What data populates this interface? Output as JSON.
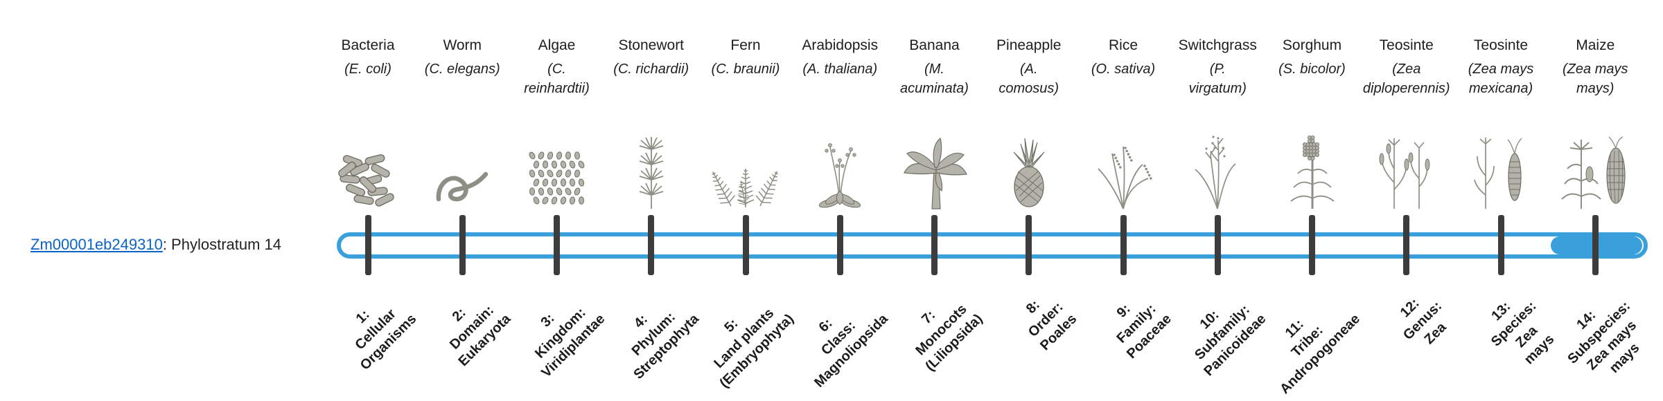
{
  "gene": {
    "id": "Zm00001eb249310",
    "phylostratum_label": ": Phylostratum 14"
  },
  "timeline": {
    "highlighted_stratum": 14,
    "num_strata": 14
  },
  "palette": {
    "bar_blue": "#39a0dc",
    "tick_dark": "#3c3c3c",
    "link_blue": "#0b63c5",
    "text_dark": "#222222"
  },
  "columns": [
    {
      "name": "Bacteria",
      "sci": "(E. coli)",
      "icon": "bacteria-icon",
      "tick": "1:\nCellular\nOrganisms"
    },
    {
      "name": "Worm",
      "sci": "(C. elegans)",
      "icon": "worm-icon",
      "tick": "2:\nDomain:\nEukaryota"
    },
    {
      "name": "Algae",
      "sci": "(C.\nreinhardtii)",
      "icon": "algae-icon",
      "tick": "3:\nKingdom:\nViridiplantae"
    },
    {
      "name": "Stonewort",
      "sci": "(C. richardii)",
      "icon": "stonewort-icon",
      "tick": "4:\nPhylum:\nStreptophyta"
    },
    {
      "name": "Fern",
      "sci": "(C. braunii)",
      "icon": "fern-icon",
      "tick": "5:\nLand plants\n(Embryophyta)"
    },
    {
      "name": "Arabidopsis",
      "sci": "(A. thaliana)",
      "icon": "arabidopsis-icon",
      "tick": "6:\nClass:\nMagnoliopsida"
    },
    {
      "name": "Banana",
      "sci": "(M.\nacuminata)",
      "icon": "banana-icon",
      "tick": "7:\nMonocots\n(Liliopsida)"
    },
    {
      "name": "Pineapple",
      "sci": "(A.\ncomosus)",
      "icon": "pineapple-icon",
      "tick": "8:\nOrder:\nPoales"
    },
    {
      "name": "Rice",
      "sci": "(O. sativa)",
      "icon": "rice-icon",
      "tick": "9:\nFamily:\nPoaceae"
    },
    {
      "name": "Switchgrass",
      "sci": "(P.\nvirgatum)",
      "icon": "switchgrass-icon",
      "tick": "10:\nSubfamily:\nPanicoideae"
    },
    {
      "name": "Sorghum",
      "sci": "(S. bicolor)",
      "icon": "sorghum-icon",
      "tick": "11:\nTribe:\nAndropogoneae"
    },
    {
      "name": "Teosinte",
      "sci": "(Zea\ndiploperennis)",
      "icon": "teosinte-diploperennis-icon",
      "tick": "12:\nGenus:\nZea"
    },
    {
      "name": "Teosinte",
      "sci": "(Zea mays\nmexicana)",
      "icon": "teosinte-mexicana-icon",
      "tick": "13:\nSpecies:\nZea\nmays"
    },
    {
      "name": "Maize",
      "sci": "(Zea mays\nmays)",
      "icon": "maize-icon",
      "tick": "14:\nSubspecies:\nZea mays\nmays"
    }
  ]
}
